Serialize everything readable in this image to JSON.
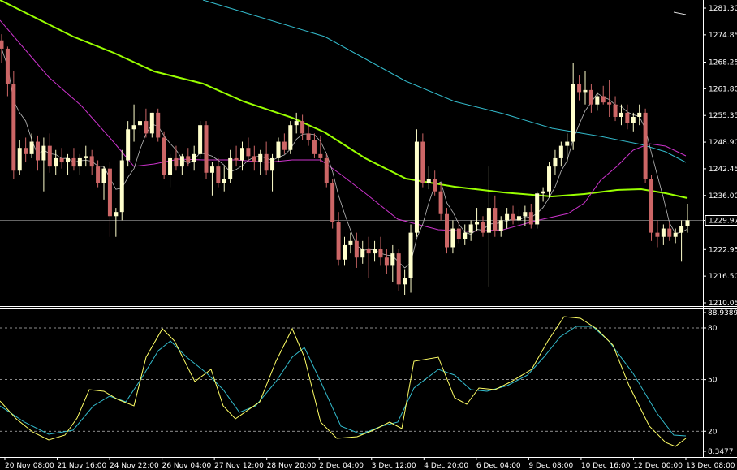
{
  "chart_data": {
    "type": "candlestick",
    "colors": {
      "background": "#000000",
      "axis": "#ffffff",
      "bull_candle": "#ffffcc",
      "bear_candle": "#cc6666",
      "ma_fast": "#bbbbbb",
      "ma_magenta": "#cc33cc",
      "ma_green": "#99ff00",
      "ma_cyan": "#33bbcc",
      "ma_slow": "#dddddd",
      "stoch_main": "#ffff66",
      "stoch_signal": "#33bbcc",
      "level_lines": "#bbbbbb",
      "current_price_line": "#888888"
    },
    "price_axis": {
      "ticks": [
        "1281.30",
        "1274.85",
        "1268.25",
        "1261.80",
        "1255.35",
        "1248.90",
        "1242.45",
        "1236.00",
        "1229.97",
        "1222.95",
        "1216.50",
        "1210.05"
      ],
      "range": [
        1210.05,
        1281.3
      ],
      "current_price": 1229.97
    },
    "oscillator_axis": {
      "ticks": [
        "88.9389",
        "80",
        "50",
        "20",
        "8.3477"
      ],
      "range": [
        8.3477,
        88.9389
      ],
      "levels": [
        80,
        50,
        20
      ]
    },
    "time_labels": [
      "20 Nov 08:00",
      "21 Nov 16:00",
      "24 Nov 22:00",
      "26 Nov 04:00",
      "27 Nov 12:00",
      "28 Nov 20:00",
      "2 Dec 04:00",
      "3 Dec 12:00",
      "4 Dec 20:00",
      "6 Dec 04:00",
      "9 Dec 08:00",
      "10 Dec 16:00",
      "12 Dec 00:00",
      "13 Dec 08:00"
    ],
    "candles": [
      [
        1273.5,
        1275.0,
        1268.0,
        1271.5
      ],
      [
        1271.5,
        1272.0,
        1260.0,
        1263.0
      ],
      [
        1263.0,
        1266.0,
        1240.0,
        1242.0
      ],
      [
        1242.0,
        1249.5,
        1241.0,
        1247.5
      ],
      [
        1247.5,
        1250.0,
        1244.0,
        1246.0
      ],
      [
        1246.0,
        1251.0,
        1245.0,
        1249.0
      ],
      [
        1249.0,
        1250.5,
        1242.0,
        1244.5
      ],
      [
        1244.5,
        1250.0,
        1237.0,
        1248.0
      ],
      [
        1248.0,
        1251.0,
        1241.5,
        1243.0
      ],
      [
        1243.0,
        1247.0,
        1241.0,
        1245.0
      ],
      [
        1245.0,
        1247.5,
        1242.5,
        1244.0
      ],
      [
        1244.0,
        1246.0,
        1241.0,
        1245.0
      ],
      [
        1245.0,
        1247.5,
        1242.0,
        1243.0
      ],
      [
        1243.0,
        1246.0,
        1241.0,
        1245.0
      ],
      [
        1245.0,
        1248.0,
        1243.0,
        1245.5
      ],
      [
        1245.5,
        1247.0,
        1241.0,
        1243.0
      ],
      [
        1243.0,
        1244.5,
        1238.0,
        1239.0
      ],
      [
        1239.0,
        1243.0,
        1235.0,
        1242.5
      ],
      [
        1242.5,
        1244.0,
        1226.0,
        1231.0
      ],
      [
        1231.0,
        1233.0,
        1226.0,
        1232.0
      ],
      [
        1232.0,
        1247.0,
        1230.0,
        1244.5
      ],
      [
        1244.5,
        1254.0,
        1243.0,
        1252.0
      ],
      [
        1252.0,
        1258.0,
        1249.0,
        1253.0
      ],
      [
        1253.0,
        1256.0,
        1251.0,
        1254.0
      ],
      [
        1254.0,
        1257.0,
        1250.0,
        1251.0
      ],
      [
        1251.0,
        1256.0,
        1250.0,
        1256.0
      ],
      [
        1256.0,
        1257.0,
        1249.0,
        1250.0
      ],
      [
        1250.0,
        1251.5,
        1240.0,
        1241.0
      ],
      [
        1241.0,
        1246.0,
        1238.0,
        1245.0
      ],
      [
        1245.0,
        1248.0,
        1242.0,
        1243.0
      ],
      [
        1243.0,
        1246.0,
        1241.0,
        1245.5
      ],
      [
        1245.5,
        1247.5,
        1243.0,
        1244.0
      ],
      [
        1244.0,
        1248.0,
        1242.0,
        1246.0
      ],
      [
        1246.0,
        1254.0,
        1245.0,
        1253.0
      ],
      [
        1253.0,
        1254.0,
        1240.0,
        1241.5
      ],
      [
        1241.5,
        1244.0,
        1236.0,
        1243.0
      ],
      [
        1243.0,
        1245.0,
        1238.0,
        1239.0
      ],
      [
        1239.0,
        1243.0,
        1237.0,
        1240.0
      ],
      [
        1240.0,
        1247.0,
        1239.0,
        1245.0
      ],
      [
        1245.0,
        1248.0,
        1243.0,
        1244.5
      ],
      [
        1244.5,
        1249.0,
        1242.0,
        1247.5
      ],
      [
        1247.5,
        1250.0,
        1244.0,
        1245.5
      ],
      [
        1245.5,
        1248.0,
        1242.0,
        1244.0
      ],
      [
        1244.0,
        1247.0,
        1241.0,
        1246.0
      ],
      [
        1246.0,
        1249.0,
        1241.0,
        1242.0
      ],
      [
        1242.0,
        1246.0,
        1237.0,
        1245.0
      ],
      [
        1245.0,
        1250.0,
        1244.0,
        1249.0
      ],
      [
        1249.0,
        1251.0,
        1246.0,
        1247.0
      ],
      [
        1247.0,
        1254.0,
        1246.0,
        1253.0
      ],
      [
        1253.0,
        1256.0,
        1251.0,
        1254.0
      ],
      [
        1254.0,
        1255.5,
        1249.5,
        1251.0
      ],
      [
        1251.0,
        1253.0,
        1248.0,
        1249.5
      ],
      [
        1249.5,
        1251.0,
        1245.0,
        1246.0
      ],
      [
        1246.0,
        1250.5,
        1244.0,
        1245.0
      ],
      [
        1245.0,
        1246.0,
        1238.0,
        1239.0
      ],
      [
        1239.0,
        1240.0,
        1228.0,
        1229.5
      ],
      [
        1229.5,
        1232.0,
        1219.0,
        1220.5
      ],
      [
        1220.5,
        1226.0,
        1219.0,
        1224.0
      ],
      [
        1224.0,
        1227.0,
        1222.0,
        1225.0
      ],
      [
        1225.0,
        1227.0,
        1218.5,
        1221.0
      ],
      [
        1221.0,
        1225.0,
        1219.5,
        1223.0
      ],
      [
        1223.0,
        1226.0,
        1216.0,
        1222.0
      ],
      [
        1222.0,
        1225.0,
        1220.0,
        1223.0
      ],
      [
        1223.0,
        1226.0,
        1219.0,
        1221.0
      ],
      [
        1221.0,
        1223.0,
        1217.0,
        1219.0
      ],
      [
        1219.0,
        1224.0,
        1215.0,
        1222.0
      ],
      [
        1222.0,
        1223.0,
        1213.0,
        1214.5
      ],
      [
        1214.5,
        1218.0,
        1212.0,
        1216.0
      ],
      [
        1216.0,
        1229.0,
        1212.5,
        1227.0
      ],
      [
        1227.0,
        1252.0,
        1226.0,
        1249.0
      ],
      [
        1249.0,
        1251.0,
        1238.0,
        1239.0
      ],
      [
        1239.0,
        1243.0,
        1237.5,
        1240.0
      ],
      [
        1240.0,
        1242.0,
        1236.0,
        1237.0
      ],
      [
        1237.0,
        1239.0,
        1230.0,
        1231.5
      ],
      [
        1231.5,
        1233.0,
        1222.0,
        1223.5
      ],
      [
        1223.5,
        1230.0,
        1222.0,
        1228.0
      ],
      [
        1228.0,
        1230.0,
        1224.5,
        1225.5
      ],
      [
        1225.5,
        1229.0,
        1224.0,
        1227.0
      ],
      [
        1227.0,
        1230.0,
        1225.0,
        1229.0
      ],
      [
        1229.0,
        1233.0,
        1227.5,
        1229.5
      ],
      [
        1229.5,
        1231.0,
        1226.0,
        1227.0
      ],
      [
        1227.0,
        1243.0,
        1214.0,
        1233.0
      ],
      [
        1233.0,
        1236.0,
        1226.0,
        1227.5
      ],
      [
        1227.5,
        1231.0,
        1226.0,
        1230.0
      ],
      [
        1230.0,
        1233.0,
        1228.0,
        1231.5
      ],
      [
        1231.5,
        1233.5,
        1229.0,
        1230.0
      ],
      [
        1230.0,
        1232.5,
        1229.0,
        1231.0
      ],
      [
        1231.0,
        1233.5,
        1228.5,
        1232.0
      ],
      [
        1232.0,
        1234.0,
        1228.0,
        1229.0
      ],
      [
        1229.0,
        1237.0,
        1228.0,
        1236.5
      ],
      [
        1236.5,
        1238.0,
        1234.5,
        1237.0
      ],
      [
        1237.0,
        1244.0,
        1235.5,
        1243.0
      ],
      [
        1243.0,
        1247.0,
        1241.0,
        1245.0
      ],
      [
        1245.0,
        1249.0,
        1243.0,
        1248.0
      ],
      [
        1248.0,
        1251.0,
        1244.0,
        1249.0
      ],
      [
        1249.0,
        1268.0,
        1247.0,
        1263.0
      ],
      [
        1263.0,
        1265.0,
        1259.0,
        1261.0
      ],
      [
        1261.0,
        1266.0,
        1258.0,
        1261.5
      ],
      [
        1261.5,
        1263.0,
        1256.0,
        1258.0
      ],
      [
        1258.0,
        1261.0,
        1256.5,
        1260.0
      ],
      [
        1260.0,
        1262.5,
        1258.0,
        1258.5
      ],
      [
        1258.5,
        1264.0,
        1255.0,
        1258.0
      ],
      [
        1258.0,
        1260.0,
        1254.0,
        1255.0
      ],
      [
        1255.0,
        1258.0,
        1253.0,
        1256.0
      ],
      [
        1256.0,
        1258.0,
        1252.0,
        1253.5
      ],
      [
        1253.5,
        1256.0,
        1251.5,
        1255.0
      ],
      [
        1255.0,
        1258.0,
        1253.0,
        1256.0
      ],
      [
        1256.0,
        1257.0,
        1239.0,
        1240.0
      ],
      [
        1240.0,
        1241.0,
        1225.0,
        1227.0
      ],
      [
        1227.0,
        1230.0,
        1223.5,
        1226.0
      ],
      [
        1226.0,
        1229.0,
        1224.0,
        1228.0
      ],
      [
        1228.0,
        1229.5,
        1225.0,
        1226.0
      ],
      [
        1226.0,
        1228.0,
        1224.5,
        1227.0
      ],
      [
        1227.0,
        1230.0,
        1220.0,
        1228.5
      ],
      [
        1228.5,
        1234.0,
        1227.0,
        1230.0
      ]
    ],
    "moving_averages": [
      {
        "key": "ma_slow",
        "color": "#dddddd",
        "points": [
          [
            830,
            15
          ],
          [
            845,
            18
          ]
        ]
      },
      {
        "key": "ma_cyan",
        "color": "#33bbcc",
        "points": [
          [
            250,
            0
          ],
          [
            300,
            15
          ],
          [
            400,
            45
          ],
          [
            500,
            100
          ],
          [
            560,
            125
          ],
          [
            620,
            140
          ],
          [
            680,
            158
          ],
          [
            740,
            168
          ],
          [
            790,
            178
          ],
          [
            820,
            187
          ],
          [
            845,
            200
          ]
        ]
      },
      {
        "key": "ma_green",
        "color": "#99ff00",
        "points": [
          [
            0,
            0
          ],
          [
            40,
            20
          ],
          [
            90,
            45
          ],
          [
            140,
            65
          ],
          [
            190,
            88
          ],
          [
            250,
            103
          ],
          [
            300,
            125
          ],
          [
            360,
            145
          ],
          [
            400,
            163
          ],
          [
            450,
            195
          ],
          [
            500,
            220
          ],
          [
            560,
            230
          ],
          [
            620,
            237
          ],
          [
            680,
            242
          ],
          [
            720,
            239
          ],
          [
            760,
            234
          ],
          [
            790,
            233
          ],
          [
            820,
            238
          ],
          [
            847,
            244
          ]
        ]
      },
      {
        "key": "ma_magenta",
        "color": "#cc33cc",
        "points": [
          [
            0,
            25
          ],
          [
            30,
            60
          ],
          [
            60,
            95
          ],
          [
            100,
            130
          ],
          [
            140,
            175
          ],
          [
            165,
            205
          ],
          [
            190,
            202
          ],
          [
            220,
            196
          ],
          [
            250,
            197
          ],
          [
            290,
            197
          ],
          [
            330,
            200
          ],
          [
            360,
            197
          ],
          [
            395,
            197
          ],
          [
            420,
            215
          ],
          [
            450,
            238
          ],
          [
            490,
            270
          ],
          [
            540,
            283
          ],
          [
            580,
            285
          ],
          [
            620,
            283
          ],
          [
            660,
            272
          ],
          [
            700,
            263
          ],
          [
            720,
            250
          ],
          [
            740,
            222
          ],
          [
            760,
            205
          ],
          [
            780,
            185
          ],
          [
            800,
            177
          ],
          [
            820,
            180
          ],
          [
            845,
            192
          ]
        ]
      }
    ],
    "stochastic": {
      "main": [
        [
          0,
          494
        ],
        [
          20,
          516
        ],
        [
          40,
          532
        ],
        [
          60,
          542
        ],
        [
          80,
          536
        ],
        [
          95,
          515
        ],
        [
          110,
          480
        ],
        [
          128,
          482
        ],
        [
          145,
          492
        ],
        [
          165,
          500
        ],
        [
          180,
          440
        ],
        [
          200,
          405
        ],
        [
          215,
          420
        ],
        [
          240,
          470
        ],
        [
          260,
          455
        ],
        [
          275,
          500
        ],
        [
          290,
          516
        ],
        [
          320,
          495
        ],
        [
          340,
          445
        ],
        [
          360,
          405
        ],
        [
          375,
          440
        ],
        [
          395,
          520
        ],
        [
          415,
          540
        ],
        [
          440,
          538
        ],
        [
          460,
          530
        ],
        [
          480,
          520
        ],
        [
          495,
          528
        ],
        [
          510,
          445
        ],
        [
          540,
          440
        ],
        [
          560,
          490
        ],
        [
          575,
          498
        ],
        [
          590,
          478
        ],
        [
          610,
          480
        ],
        [
          630,
          470
        ],
        [
          655,
          455
        ],
        [
          675,
          420
        ],
        [
          695,
          390
        ],
        [
          715,
          392
        ],
        [
          735,
          405
        ],
        [
          755,
          425
        ],
        [
          775,
          475
        ],
        [
          800,
          525
        ],
        [
          820,
          545
        ],
        [
          832,
          550
        ],
        [
          845,
          540
        ]
      ],
      "signal": [
        [
          0,
          500
        ],
        [
          30,
          520
        ],
        [
          60,
          535
        ],
        [
          90,
          530
        ],
        [
          115,
          500
        ],
        [
          135,
          488
        ],
        [
          155,
          495
        ],
        [
          175,
          465
        ],
        [
          195,
          432
        ],
        [
          210,
          420
        ],
        [
          230,
          440
        ],
        [
          255,
          460
        ],
        [
          275,
          480
        ],
        [
          295,
          508
        ],
        [
          315,
          500
        ],
        [
          340,
          470
        ],
        [
          360,
          440
        ],
        [
          375,
          428
        ],
        [
          395,
          470
        ],
        [
          420,
          525
        ],
        [
          445,
          535
        ],
        [
          470,
          525
        ],
        [
          490,
          520
        ],
        [
          510,
          478
        ],
        [
          540,
          455
        ],
        [
          560,
          462
        ],
        [
          580,
          480
        ],
        [
          600,
          482
        ],
        [
          625,
          475
        ],
        [
          650,
          462
        ],
        [
          670,
          440
        ],
        [
          690,
          415
        ],
        [
          710,
          402
        ],
        [
          730,
          402
        ],
        [
          750,
          420
        ],
        [
          780,
          460
        ],
        [
          810,
          510
        ],
        [
          830,
          536
        ],
        [
          845,
          537
        ]
      ]
    }
  }
}
